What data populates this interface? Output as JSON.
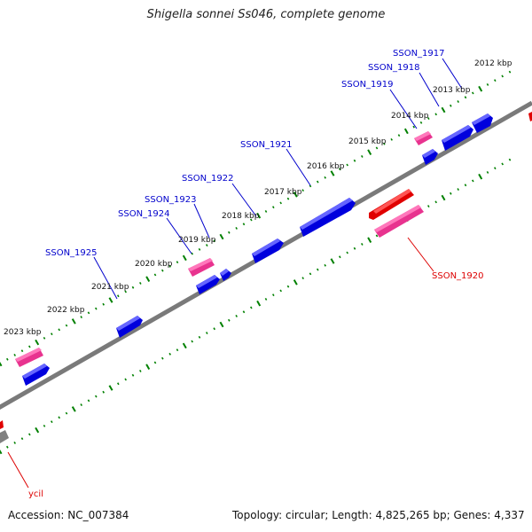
{
  "title": "Shigella sonnei Ss046, complete genome",
  "accession": "Accession: NC_007384",
  "topology": "Topology: circular; Length: 4,825,265 bp; Genes: 4,337",
  "colors": {
    "backbone": "#808080",
    "tick": "#008000",
    "forward_gene": "#0000ee",
    "reverse_gene": "#ee0000",
    "rna": "#ee3399",
    "label_forward": "#0000cc",
    "label_reverse": "#dd0000"
  },
  "kbp_labels": [
    "2012 kbp",
    "2013 kbp",
    "2014 kbp",
    "2015 kbp",
    "2016 kbp",
    "2017 kbp",
    "2018 kbp",
    "2019 kbp",
    "2020 kbp",
    "2021 kbp",
    "2022 kbp",
    "2023 kbp"
  ],
  "gene_labels_forward": [
    "SSON_1917",
    "SSON_1918",
    "SSON_1919",
    "SSON_1921",
    "SSON_1922",
    "SSON_1923",
    "SSON_1924",
    "SSON_1925"
  ],
  "gene_labels_reverse": [
    "SSON_1920",
    "ycil"
  ]
}
